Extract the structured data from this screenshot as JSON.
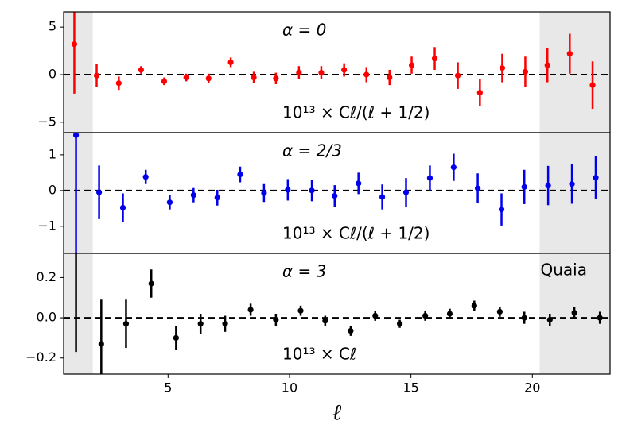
{
  "chart_data": [
    {
      "type": "errorbar",
      "annotation": "α = 0",
      "formula": "10¹³ × Cℓ/(ℓ + 1/2)",
      "xlim": [
        0.7,
        23.2
      ],
      "ylim": [
        -6.1,
        6.6
      ],
      "yticks": [
        {
          "value": -5,
          "label": "−5"
        },
        0,
        5
      ],
      "shaded_x": [
        [
          0.7,
          1.9
        ],
        [
          20.3,
          23.2
        ]
      ],
      "series": [
        {
          "color": "#ff0000",
          "x": [
            1.14,
            2.06,
            2.97,
            3.89,
            4.84,
            5.75,
            6.67,
            7.58,
            8.53,
            9.44,
            10.39,
            11.31,
            12.25,
            13.17,
            14.12,
            15.03,
            15.98,
            16.93,
            17.84,
            18.76,
            19.71,
            20.62,
            21.54,
            22.48
          ],
          "values": [
            3.2,
            -0.1,
            -0.9,
            0.5,
            -0.7,
            -0.3,
            -0.4,
            1.3,
            -0.3,
            -0.4,
            0.2,
            0.2,
            0.5,
            0.0,
            -0.3,
            1.0,
            1.7,
            -0.1,
            -1.9,
            0.7,
            0.3,
            1.0,
            2.2,
            -1.1
          ],
          "errors": [
            5.2,
            1.2,
            0.7,
            0.4,
            0.4,
            0.4,
            0.5,
            0.5,
            0.6,
            0.6,
            0.7,
            0.7,
            0.7,
            0.8,
            0.8,
            0.9,
            1.2,
            1.4,
            1.4,
            1.5,
            1.6,
            1.8,
            2.1,
            2.5
          ]
        }
      ]
    },
    {
      "type": "errorbar",
      "annotation": "α = 2/3",
      "formula": "10¹³ × Cℓ/(ℓ + 1/2)",
      "xlim": [
        0.7,
        23.2
      ],
      "ylim": [
        -1.76,
        1.62
      ],
      "yticks": [
        {
          "value": -1,
          "label": "−1"
        },
        0,
        1
      ],
      "shaded_x": [
        [
          0.7,
          1.9
        ],
        [
          20.3,
          23.2
        ]
      ],
      "series": [
        {
          "color": "#0000ee",
          "x": [
            1.21,
            2.16,
            3.14,
            4.08,
            5.07,
            6.05,
            7.03,
            7.97,
            8.95,
            9.93,
            10.92,
            11.86,
            12.84,
            13.82,
            14.8,
            15.78,
            16.76,
            17.75,
            18.73,
            19.67,
            20.65,
            21.63,
            22.61
          ],
          "values": [
            1.55,
            -0.05,
            -0.48,
            0.38,
            -0.33,
            -0.13,
            -0.2,
            0.45,
            -0.07,
            0.02,
            0.0,
            -0.15,
            0.2,
            -0.18,
            -0.05,
            0.35,
            0.65,
            0.06,
            -0.53,
            0.1,
            0.14,
            0.18,
            0.36
          ],
          "errors": [
            3.3,
            0.75,
            0.4,
            0.2,
            0.2,
            0.2,
            0.22,
            0.22,
            0.25,
            0.3,
            0.3,
            0.3,
            0.3,
            0.35,
            0.4,
            0.35,
            0.38,
            0.42,
            0.45,
            0.48,
            0.55,
            0.55,
            0.6
          ]
        }
      ]
    },
    {
      "type": "errorbar",
      "annotation": "α = 3",
      "formula": "10¹³ × Cℓ",
      "label": "Quaia",
      "xlim": [
        0.7,
        23.2
      ],
      "ylim": [
        -0.28,
        0.32
      ],
      "xticks": [
        5,
        10,
        15,
        20
      ],
      "xlabel": "ℓ",
      "yticks": [
        {
          "value": -0.2,
          "label": "−0.2"
        },
        {
          "value": 0,
          "label": "0.0"
        },
        0.2
      ],
      "shaded_x": [
        [
          0.7,
          1.9
        ],
        [
          20.3,
          23.2
        ]
      ],
      "series": [
        {
          "color": "#000000",
          "x": [
            1.21,
            2.25,
            3.27,
            4.31,
            5.33,
            6.34,
            7.35,
            8.4,
            9.44,
            10.46,
            11.47,
            12.52,
            13.53,
            14.54,
            15.59,
            16.6,
            17.61,
            18.66,
            19.67,
            20.72,
            21.73,
            22.78
          ],
          "values": [
            0.33,
            -0.13,
            -0.03,
            0.17,
            -0.1,
            -0.03,
            -0.03,
            0.04,
            -0.01,
            0.035,
            -0.015,
            -0.065,
            0.01,
            -0.03,
            0.01,
            0.02,
            0.06,
            0.03,
            0,
            -0.01,
            0.025,
            0
          ],
          "errors": [
            0.5,
            0.22,
            0.12,
            0.07,
            0.06,
            0.05,
            0.04,
            0.03,
            0.03,
            0.025,
            0.025,
            0.025,
            0.025,
            0.02,
            0.025,
            0.025,
            0.025,
            0.025,
            0.03,
            0.03,
            0.03,
            0.03
          ]
        }
      ]
    }
  ]
}
